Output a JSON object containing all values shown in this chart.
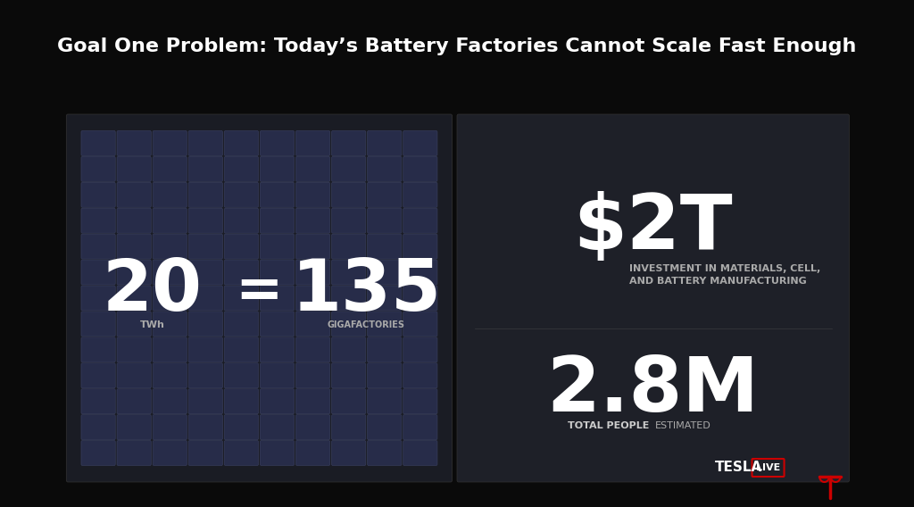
{
  "title": "Goal One Problem: Today’s Battery Factories Cannot Scale Fast Enough",
  "bg_color": "#0a0a0a",
  "panel_left_bg": "#1a1c24",
  "panel_right_bg": "#1e2028",
  "cell_color": "#2a3050",
  "cell_border_color": "#3a4060",
  "grid_rows": 13,
  "grid_cols": 10,
  "left_number": "20",
  "left_unit": "TWh",
  "equals_sign": "=",
  "right_number": "135",
  "right_unit": "GIGAFACTORIES",
  "big_stat1": "$2T",
  "big_stat1_sub": "INVESTMENT IN MATERIALS, CELL,\nAND BATTERY MANUFACTURING",
  "big_stat2": "2.8M",
  "big_stat2_sub1": "TOTAL PEOPLE",
  "big_stat2_sub2": "ESTIMATED",
  "divider_color": "#555555",
  "white": "#ffffff",
  "gray_text": "#aaaaaa",
  "lighter_gray": "#cccccc",
  "tesla_red": "#cc0000"
}
